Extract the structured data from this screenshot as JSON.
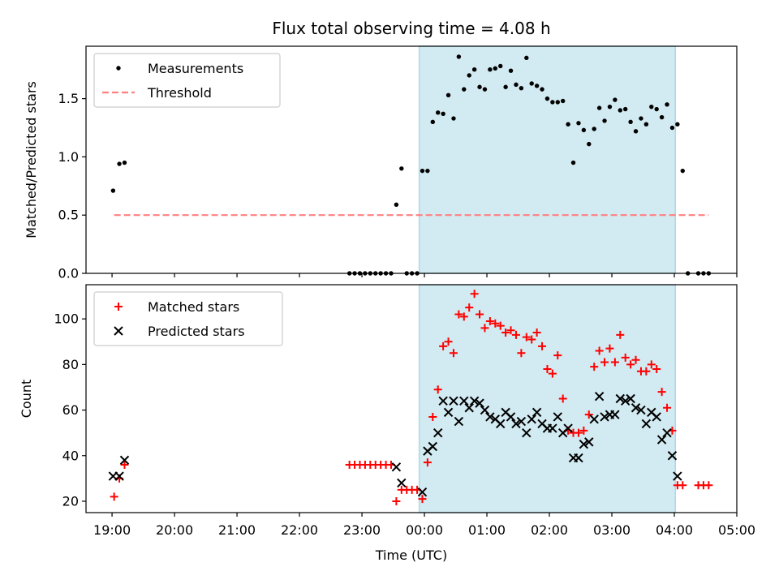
{
  "chart_data": [
    {
      "type": "scatter",
      "title": "Flux total observing time = 4.08 h",
      "xlabel": "",
      "ylabel": "Matched/Predicted stars",
      "xlim": [
        "18:35",
        "05:00"
      ],
      "ylim": [
        0,
        1.95
      ],
      "yticks": [
        0.0,
        0.5,
        1.0,
        1.5
      ],
      "ytick_labels": [
        "0.0",
        "0.5",
        "1.0",
        "1.5"
      ],
      "legend_position": "upper-left",
      "shaded_interval": {
        "x0": "23:55",
        "x1": "04:01",
        "color": "#add8e6"
      },
      "series": [
        {
          "name": "Measurements",
          "marker": "dot",
          "color": "#000000",
          "points": [
            [
              "19:01",
              0.71
            ],
            [
              "19:07",
              0.94
            ],
            [
              "19:12",
              0.95
            ],
            [
              "22:48",
              0.0
            ],
            [
              "22:53",
              0.0
            ],
            [
              "22:58",
              0.0
            ],
            [
              "23:03",
              0.0
            ],
            [
              "23:08",
              0.0
            ],
            [
              "23:13",
              0.0
            ],
            [
              "23:18",
              0.0
            ],
            [
              "23:23",
              0.0
            ],
            [
              "23:28",
              0.0
            ],
            [
              "23:33",
              0.59
            ],
            [
              "23:38",
              0.9
            ],
            [
              "23:43",
              0.0
            ],
            [
              "23:48",
              0.0
            ],
            [
              "23:53",
              0.0
            ],
            [
              "23:58",
              0.88
            ],
            [
              "00:03",
              0.88
            ],
            [
              "00:08",
              1.3
            ],
            [
              "00:13",
              1.38
            ],
            [
              "00:18",
              1.37
            ],
            [
              "00:23",
              1.53
            ],
            [
              "00:28",
              1.33
            ],
            [
              "00:33",
              1.86
            ],
            [
              "00:38",
              1.58
            ],
            [
              "00:43",
              1.7
            ],
            [
              "00:48",
              1.75
            ],
            [
              "00:53",
              1.6
            ],
            [
              "00:58",
              1.58
            ],
            [
              "01:03",
              1.75
            ],
            [
              "01:08",
              1.76
            ],
            [
              "01:13",
              1.78
            ],
            [
              "01:18",
              1.6
            ],
            [
              "01:23",
              1.74
            ],
            [
              "01:28",
              1.62
            ],
            [
              "01:33",
              1.59
            ],
            [
              "01:38",
              1.85
            ],
            [
              "01:43",
              1.63
            ],
            [
              "01:48",
              1.61
            ],
            [
              "01:53",
              1.58
            ],
            [
              "01:58",
              1.5
            ],
            [
              "02:03",
              1.47
            ],
            [
              "02:08",
              1.47
            ],
            [
              "02:13",
              1.48
            ],
            [
              "02:18",
              1.28
            ],
            [
              "02:23",
              0.95
            ],
            [
              "02:28",
              1.29
            ],
            [
              "02:33",
              1.23
            ],
            [
              "02:38",
              1.11
            ],
            [
              "02:43",
              1.24
            ],
            [
              "02:48",
              1.42
            ],
            [
              "02:53",
              1.31
            ],
            [
              "02:58",
              1.43
            ],
            [
              "03:03",
              1.49
            ],
            [
              "03:08",
              1.4
            ],
            [
              "03:13",
              1.41
            ],
            [
              "03:18",
              1.3
            ],
            [
              "03:23",
              1.22
            ],
            [
              "03:28",
              1.33
            ],
            [
              "03:33",
              1.28
            ],
            [
              "03:38",
              1.43
            ],
            [
              "03:43",
              1.41
            ],
            [
              "03:48",
              1.34
            ],
            [
              "03:53",
              1.45
            ],
            [
              "03:58",
              1.25
            ],
            [
              "04:03",
              1.28
            ],
            [
              "04:08",
              0.88
            ],
            [
              "04:13",
              0.0
            ],
            [
              "04:23",
              0.0
            ],
            [
              "04:28",
              0.0
            ],
            [
              "04:33",
              0.0
            ]
          ]
        },
        {
          "name": "Threshold",
          "style": "dashed",
          "color": "#ff8080",
          "points": [
            [
              "19:02",
              0.5
            ],
            [
              "04:33",
              0.5
            ]
          ]
        }
      ]
    },
    {
      "type": "scatter",
      "title": "",
      "xlabel": "Time (UTC)",
      "ylabel": "Count",
      "xlim": [
        "18:35",
        "05:00"
      ],
      "ylim": [
        15,
        115
      ],
      "yticks": [
        20,
        40,
        60,
        80,
        100
      ],
      "ytick_labels": [
        "20",
        "40",
        "60",
        "80",
        "100"
      ],
      "xticks": [
        "19:00",
        "20:00",
        "21:00",
        "22:00",
        "23:00",
        "00:00",
        "01:00",
        "02:00",
        "03:00",
        "04:00",
        "05:00"
      ],
      "xtick_labels": [
        "19:00",
        "20:00",
        "21:00",
        "22:00",
        "23:00",
        "00:00",
        "01:00",
        "02:00",
        "03:00",
        "04:00",
        "05:00"
      ],
      "legend_position": "upper-left",
      "shaded_interval": {
        "x0": "23:55",
        "x1": "04:01",
        "color": "#add8e6"
      },
      "series": [
        {
          "name": "Matched stars",
          "marker": "plus",
          "color": "#ff0000",
          "points": [
            [
              "19:02",
              22
            ],
            [
              "19:07",
              30
            ],
            [
              "19:12",
              36
            ],
            [
              "22:48",
              36
            ],
            [
              "22:53",
              36
            ],
            [
              "22:58",
              36
            ],
            [
              "23:03",
              36
            ],
            [
              "23:08",
              36
            ],
            [
              "23:13",
              36
            ],
            [
              "23:18",
              36
            ],
            [
              "23:23",
              36
            ],
            [
              "23:28",
              36
            ],
            [
              "23:33",
              20
            ],
            [
              "23:38",
              25
            ],
            [
              "23:43",
              25
            ],
            [
              "23:48",
              25
            ],
            [
              "23:53",
              25
            ],
            [
              "23:58",
              21
            ],
            [
              "00:03",
              37
            ],
            [
              "00:08",
              57
            ],
            [
              "00:13",
              69
            ],
            [
              "00:18",
              88
            ],
            [
              "00:23",
              90
            ],
            [
              "00:28",
              85
            ],
            [
              "00:33",
              102
            ],
            [
              "00:38",
              101
            ],
            [
              "00:43",
              105
            ],
            [
              "00:48",
              111
            ],
            [
              "00:53",
              102
            ],
            [
              "00:58",
              96
            ],
            [
              "01:03",
              99
            ],
            [
              "01:08",
              98
            ],
            [
              "01:13",
              97
            ],
            [
              "01:18",
              94
            ],
            [
              "01:23",
              95
            ],
            [
              "01:28",
              93
            ],
            [
              "01:33",
              85
            ],
            [
              "01:38",
              92
            ],
            [
              "01:43",
              91
            ],
            [
              "01:48",
              94
            ],
            [
              "01:53",
              88
            ],
            [
              "01:58",
              78
            ],
            [
              "02:03",
              76
            ],
            [
              "02:08",
              84
            ],
            [
              "02:13",
              65
            ],
            [
              "02:18",
              51
            ],
            [
              "02:23",
              50
            ],
            [
              "02:28",
              50
            ],
            [
              "02:33",
              51
            ],
            [
              "02:38",
              58
            ],
            [
              "02:43",
              79
            ],
            [
              "02:48",
              86
            ],
            [
              "02:53",
              81
            ],
            [
              "02:58",
              87
            ],
            [
              "03:03",
              81
            ],
            [
              "03:08",
              93
            ],
            [
              "03:13",
              83
            ],
            [
              "03:18",
              80
            ],
            [
              "03:23",
              82
            ],
            [
              "03:28",
              77
            ],
            [
              "03:33",
              77
            ],
            [
              "03:38",
              80
            ],
            [
              "03:43",
              78
            ],
            [
              "03:48",
              68
            ],
            [
              "03:53",
              61
            ],
            [
              "03:58",
              51
            ],
            [
              "04:03",
              27
            ],
            [
              "04:08",
              27
            ],
            [
              "04:23",
              27
            ],
            [
              "04:28",
              27
            ],
            [
              "04:33",
              27
            ]
          ]
        },
        {
          "name": "Predicted stars",
          "marker": "x",
          "color": "#000000",
          "points": [
            [
              "19:01",
              31
            ],
            [
              "19:07",
              31
            ],
            [
              "19:12",
              38
            ],
            [
              "23:33",
              35
            ],
            [
              "23:38",
              28
            ],
            [
              "23:58",
              24
            ],
            [
              "00:03",
              42
            ],
            [
              "00:08",
              44
            ],
            [
              "00:13",
              50
            ],
            [
              "00:18",
              64
            ],
            [
              "00:23",
              59
            ],
            [
              "00:28",
              64
            ],
            [
              "00:33",
              55
            ],
            [
              "00:38",
              64
            ],
            [
              "00:43",
              61
            ],
            [
              "00:48",
              64
            ],
            [
              "00:53",
              63
            ],
            [
              "00:58",
              60
            ],
            [
              "01:03",
              57
            ],
            [
              "01:08",
              56
            ],
            [
              "01:13",
              54
            ],
            [
              "01:18",
              59
            ],
            [
              "01:23",
              57
            ],
            [
              "01:28",
              54
            ],
            [
              "01:33",
              55
            ],
            [
              "01:38",
              50
            ],
            [
              "01:43",
              56
            ],
            [
              "01:48",
              59
            ],
            [
              "01:53",
              54
            ],
            [
              "01:58",
              52
            ],
            [
              "02:03",
              52
            ],
            [
              "02:08",
              57
            ],
            [
              "02:13",
              50
            ],
            [
              "02:18",
              52
            ],
            [
              "02:23",
              39
            ],
            [
              "02:28",
              39
            ],
            [
              "02:33",
              45
            ],
            [
              "02:38",
              46
            ],
            [
              "02:43",
              56
            ],
            [
              "02:48",
              66
            ],
            [
              "02:53",
              57
            ],
            [
              "02:58",
              58
            ],
            [
              "03:03",
              58
            ],
            [
              "03:08",
              65
            ],
            [
              "03:13",
              64
            ],
            [
              "03:18",
              65
            ],
            [
              "03:23",
              61
            ],
            [
              "03:28",
              60
            ],
            [
              "03:33",
              54
            ],
            [
              "03:38",
              59
            ],
            [
              "03:43",
              57
            ],
            [
              "03:48",
              47
            ],
            [
              "03:53",
              50
            ],
            [
              "03:58",
              40
            ],
            [
              "04:03",
              31
            ]
          ]
        }
      ]
    }
  ]
}
